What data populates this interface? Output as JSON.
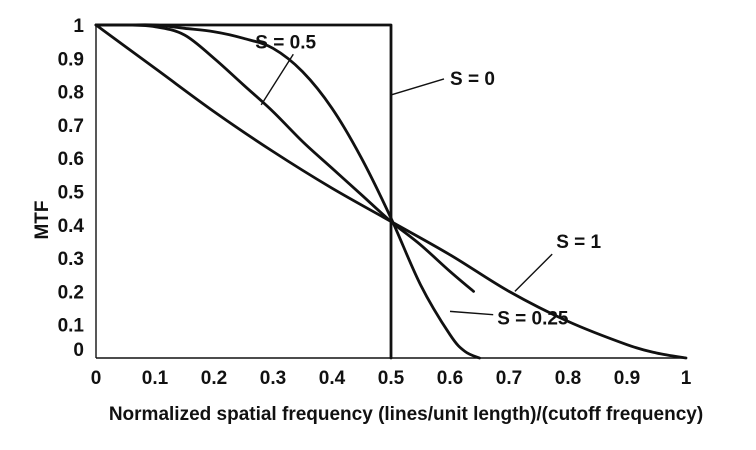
{
  "chart_data": {
    "type": "line",
    "title": "",
    "xlabel": "Normalized spatial frequency (lines/unit length)/(cutoff frequency)",
    "ylabel": "MTF",
    "xlim": [
      0,
      1
    ],
    "ylim": [
      0,
      1
    ],
    "x_ticks": [
      "0",
      "0.1",
      "0.2",
      "0.3",
      "0.4",
      "0.5",
      "0.6",
      "0.7",
      "0.8",
      "0.9",
      "1"
    ],
    "y_ticks": [
      "0",
      "0.1",
      "0.2",
      "0.3",
      "0.4",
      "0.5",
      "0.6",
      "0.7",
      "0.8",
      "0.9",
      "1"
    ],
    "grid": false,
    "series": [
      {
        "name": "S = 0",
        "x": [
          0,
          0.5,
          0.5
        ],
        "y": [
          1,
          1,
          0
        ]
      },
      {
        "name": "S = 0.25",
        "x": [
          0,
          0.05,
          0.1,
          0.15,
          0.2,
          0.25,
          0.3,
          0.35,
          0.4,
          0.45,
          0.5,
          0.55,
          0.6,
          0.625,
          0.65
        ],
        "y": [
          1,
          1,
          1,
          0.99,
          0.98,
          0.96,
          0.93,
          0.86,
          0.75,
          0.6,
          0.42,
          0.22,
          0.07,
          0.02,
          0
        ]
      },
      {
        "name": "S = 0.5",
        "x": [
          0,
          0.05,
          0.1,
          0.15,
          0.2,
          0.25,
          0.3,
          0.35,
          0.4,
          0.45,
          0.5,
          0.55,
          0.6,
          0.64
        ],
        "y": [
          1,
          1,
          0.995,
          0.97,
          0.9,
          0.82,
          0.74,
          0.65,
          0.57,
          0.49,
          0.41,
          0.34,
          0.26,
          0.2
        ]
      },
      {
        "name": "S = 1",
        "x": [
          0,
          0.1,
          0.2,
          0.3,
          0.4,
          0.5,
          0.6,
          0.7,
          0.8,
          0.9,
          0.95,
          1
        ],
        "y": [
          1,
          0.87,
          0.74,
          0.62,
          0.51,
          0.41,
          0.31,
          0.2,
          0.11,
          0.04,
          0.015,
          0
        ]
      }
    ],
    "annotations": [
      {
        "label": "S = 0.5",
        "series": "S = 0.5",
        "text_at": [
          0.27,
          0.93
        ],
        "point_at": [
          0.28,
          0.76
        ]
      },
      {
        "label": "S = 0",
        "series": "S = 0",
        "text_at": [
          0.6,
          0.82
        ],
        "point_at": [
          0.5,
          0.79
        ]
      },
      {
        "label": "S = 1",
        "series": "S = 1",
        "text_at": [
          0.78,
          0.33
        ],
        "point_at": [
          0.71,
          0.2
        ]
      },
      {
        "label": "S = 0.25",
        "series": "S = 0.25",
        "text_at": [
          0.68,
          0.1
        ],
        "point_at": [
          0.6,
          0.14
        ]
      }
    ]
  }
}
